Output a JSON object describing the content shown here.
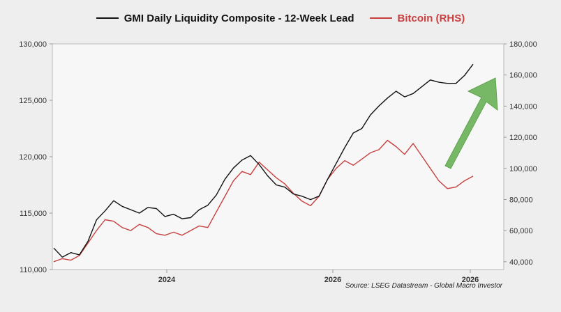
{
  "chart_data": {
    "type": "line",
    "legend": [
      {
        "name": "GMI Daily Liquidity Composite - 12-Week Lead",
        "color": "#111111"
      },
      {
        "name": "Bitcoin (RHS)",
        "color": "#c8403e"
      }
    ],
    "x_ticks": [
      "2024",
      "2026",
      "2026"
    ],
    "left_axis": {
      "ticks": [
        "110,000",
        "115,000",
        "120,000",
        "125,000",
        "130,000"
      ],
      "ylim": [
        110000,
        130000
      ]
    },
    "right_axis": {
      "ticks": [
        "40,000",
        "60,000",
        "80,000",
        "100,000",
        "120,000",
        "140,000",
        "160,000",
        "180,000"
      ],
      "ylim": [
        35000,
        180000
      ]
    },
    "series": [
      {
        "name": "GMI Daily Liquidity Composite - 12-Week Lead",
        "axis": "left",
        "color": "#111111",
        "values": [
          111900,
          111100,
          111500,
          111300,
          112500,
          114400,
          115200,
          116100,
          115600,
          115300,
          115000,
          115500,
          115400,
          114700,
          114900,
          114500,
          114600,
          115300,
          115700,
          116600,
          118000,
          119000,
          119700,
          120100,
          119300,
          118300,
          117500,
          117300,
          116700,
          116500,
          116200,
          116500,
          118000,
          119400,
          120800,
          122100,
          122500,
          123700,
          124500,
          125200,
          125800,
          125300,
          125600,
          126200,
          126800,
          126600,
          126500,
          126500,
          127200,
          128200
        ]
      },
      {
        "name": "Bitcoin (RHS)",
        "axis": "right",
        "color": "#c8403e",
        "values": [
          40000,
          42000,
          41000,
          44000,
          52000,
          60000,
          67000,
          66000,
          62000,
          60000,
          64000,
          62000,
          58000,
          57000,
          59000,
          57000,
          60000,
          63000,
          62000,
          72000,
          82000,
          92000,
          98000,
          96000,
          104000,
          99000,
          94000,
          90000,
          84000,
          79000,
          76000,
          82000,
          93000,
          100000,
          105000,
          102000,
          106000,
          110000,
          112000,
          118000,
          114000,
          109000,
          116000,
          108000,
          100000,
          92000,
          87000,
          88000,
          92000,
          95000
        ]
      }
    ],
    "source": "Source: LSEG Datastream - Global Macro Investor"
  }
}
